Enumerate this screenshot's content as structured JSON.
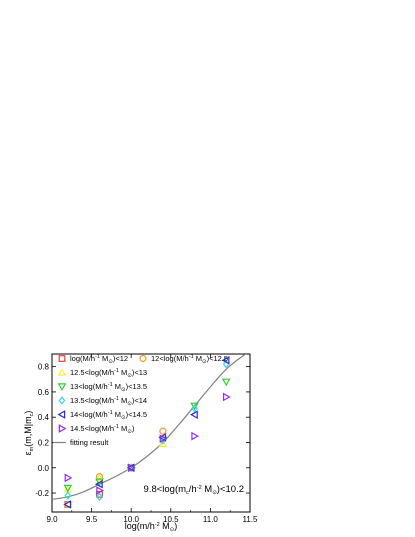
{
  "chart_data": {
    "type": "scatter",
    "xlabel": "log(m/h^-2 M_⊙)",
    "ylabel": "ε_m(m,M|m_c)",
    "annotation": "9.8<log(m_c/h^-2 M_⊙)<10.2",
    "xlim": [
      9.0,
      11.5
    ],
    "ylim": [
      -0.35,
      0.9
    ],
    "x_ticks": [
      "9.0",
      "9.5",
      "10.0",
      "10.5",
      "11.0",
      "11.5"
    ],
    "y_ticks": [
      "-0.2",
      "0.0",
      "0.2",
      "0.4",
      "0.6",
      "0.8"
    ],
    "legend_placement": "top-left",
    "series": [
      {
        "name": "log(M/h^-1 M_⊙)<12",
        "color": "#e8403a",
        "marker": "square",
        "x": [
          9.2,
          9.6,
          10.0
        ],
        "y": [
          -0.29,
          -0.21,
          0.0
        ]
      },
      {
        "name": "12<log(M/h^-1 M_⊙)<12.5",
        "color": "#f59a2a",
        "marker": "circle",
        "x": [
          9.2,
          9.6,
          10.0,
          10.4
        ],
        "y": [
          -0.29,
          -0.07,
          0.0,
          0.29
        ]
      },
      {
        "name": "12.5<log(M/h^-1 M_⊙)<13",
        "color": "#f5f040",
        "marker": "triangle-up",
        "x": [
          9.2,
          9.6,
          10.0,
          10.4
        ],
        "y": [
          -0.17,
          -0.08,
          0.0,
          0.19
        ]
      },
      {
        "name": "13<log(M/h^-1 M_⊙)<13.5",
        "color": "#33cc33",
        "marker": "triangle-down",
        "x": [
          9.2,
          9.6,
          10.0,
          10.4,
          10.8,
          11.2
        ],
        "y": [
          -0.16,
          -0.11,
          0.0,
          0.22,
          0.49,
          0.68
        ]
      },
      {
        "name": "13.5<log(M/h^-1 M_⊙)<14",
        "color": "#33d8e8",
        "marker": "diamond",
        "x": [
          9.2,
          9.6,
          10.0,
          10.4,
          10.8,
          11.2
        ],
        "y": [
          -0.22,
          -0.23,
          0.0,
          0.22,
          0.47,
          0.82
        ]
      },
      {
        "name": "14<log(M/h^-1 M_⊙)<14.5",
        "color": "#2a2ad8",
        "marker": "triangle-left",
        "x": [
          9.2,
          9.6,
          10.0,
          10.4,
          10.8,
          11.2
        ],
        "y": [
          -0.29,
          -0.13,
          0.0,
          0.24,
          0.42,
          0.85
        ]
      },
      {
        "name": "14.5<log(M/h^-1 M_⊙)",
        "color": "#9b2ae8",
        "marker": "triangle-right",
        "x": [
          9.2,
          9.6,
          10.0,
          10.4,
          10.8,
          11.2
        ],
        "y": [
          -0.08,
          -0.18,
          0.0,
          0.23,
          0.25,
          0.56
        ]
      }
    ],
    "fit": {
      "name": "fitting result",
      "color": "#808080",
      "x": [
        9.0,
        9.2,
        9.4,
        9.6,
        9.8,
        10.0,
        10.2,
        10.4,
        10.6,
        10.8,
        11.0,
        11.2,
        11.4,
        11.5
      ],
      "y": [
        -0.25,
        -0.23,
        -0.19,
        -0.13,
        -0.07,
        0.0,
        0.09,
        0.2,
        0.34,
        0.49,
        0.64,
        0.78,
        0.88,
        0.92
      ]
    }
  }
}
